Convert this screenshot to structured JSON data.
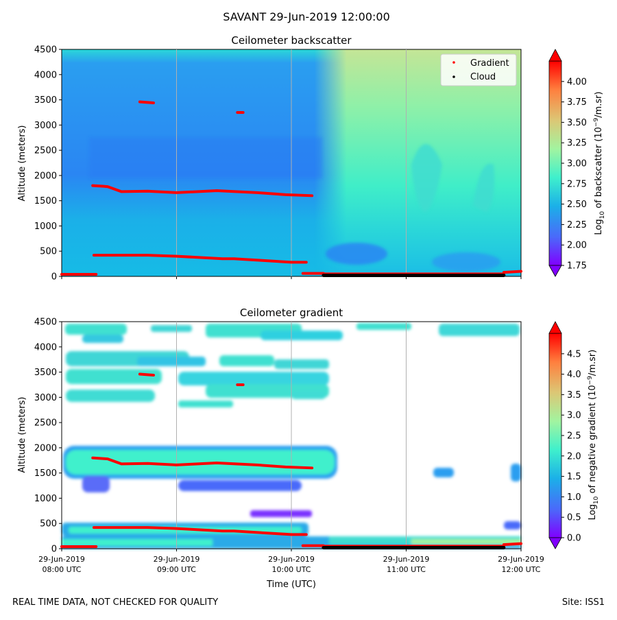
{
  "figure": {
    "title": "SAVANT 29-Jun-2019 12:00:00",
    "footer_left": "REAL TIME DATA, NOT CHECKED FOR QUALITY",
    "footer_right": "Site: ISS1",
    "xlabel": "Time (UTC)"
  },
  "colors": {
    "gradient_marker": "#ff0000",
    "cloud_marker": "#000000",
    "grid": "#b0b0b0",
    "colormap": [
      "#8000ff",
      "#4a6afa",
      "#1bb0e8",
      "#3ff0cc",
      "#a2f4a0",
      "#dcc775",
      "#ff7f3e",
      "#ff0000"
    ]
  },
  "chart_data": [
    {
      "type": "heatmap",
      "title": "Ceilometer backscatter",
      "ylabel": "Altitude (meters)",
      "ylim": [
        0,
        4500
      ],
      "yticks": [
        0,
        500,
        1000,
        1500,
        2000,
        2500,
        3000,
        3500,
        4000,
        4500
      ],
      "xlim_hours": [
        8,
        12
      ],
      "xticks_hours": [
        8,
        9,
        10,
        11,
        12
      ],
      "xtick_labels": [
        [
          "29-Jun-2019",
          "08:00 UTC"
        ],
        [
          "29-Jun-2019",
          "09:00 UTC"
        ],
        [
          "29-Jun-2019",
          "10:00 UTC"
        ],
        [
          "29-Jun-2019",
          "11:00 UTC"
        ],
        [
          "29-Jun-2019",
          "12:00 UTC"
        ]
      ],
      "show_xtick_labels": false,
      "grid": "x",
      "legend": {
        "placement": "top-right",
        "entries": [
          {
            "name": "Gradient",
            "color": "#ff0000"
          },
          {
            "name": "Cloud",
            "color": "#000000"
          }
        ]
      },
      "colorbar": {
        "label": "Log10 of backscatter (10^-9/m.sr)",
        "label_main": "Log",
        "label_sub": "10",
        "label_rest": " of backscatter (10",
        "label_sup": "−9",
        "label_end": "/m.sr)",
        "range": [
          1.75,
          4.25
        ],
        "ticks": [
          "1.75",
          "2.00",
          "2.25",
          "2.50",
          "2.75",
          "3.00",
          "3.25",
          "3.50",
          "3.75",
          "4.00"
        ],
        "tick_values": [
          1.75,
          2.0,
          2.25,
          2.5,
          2.75,
          3.0,
          3.25,
          3.5,
          3.75,
          4.0
        ]
      },
      "series": [
        {
          "name": "Gradient",
          "segments": [
            [
              [
                8.0,
                40
              ],
              [
                8.3,
                40
              ]
            ],
            [
              [
                8.28,
                420
              ],
              [
                8.75,
                420
              ],
              [
                9.0,
                400
              ],
              [
                9.4,
                350
              ],
              [
                9.5,
                350
              ],
              [
                10.0,
                280
              ],
              [
                10.13,
                280
              ]
            ],
            [
              [
                8.27,
                1800
              ],
              [
                8.4,
                1780
              ],
              [
                8.52,
                1680
              ],
              [
                8.75,
                1690
              ],
              [
                9.0,
                1660
              ],
              [
                9.35,
                1700
              ],
              [
                9.7,
                1660
              ],
              [
                9.95,
                1620
              ],
              [
                10.18,
                1600
              ]
            ],
            [
              [
                8.68,
                3460
              ],
              [
                8.8,
                3440
              ]
            ],
            [
              [
                9.53,
                3250
              ],
              [
                9.58,
                3250
              ]
            ],
            [
              [
                10.1,
                60
              ],
              [
                10.28,
                60
              ]
            ],
            [
              [
                10.28,
                50
              ],
              [
                11.85,
                50
              ]
            ],
            [
              [
                11.85,
                80
              ],
              [
                12.0,
                100
              ]
            ]
          ]
        },
        {
          "name": "Cloud",
          "segments": [
            [
              [
                10.28,
                20
              ],
              [
                11.85,
                20
              ]
            ]
          ]
        }
      ]
    },
    {
      "type": "heatmap",
      "title": "Ceilometer gradient",
      "ylabel": "Altitude (meters)",
      "ylim": [
        0,
        4500
      ],
      "yticks": [
        0,
        500,
        1000,
        1500,
        2000,
        2500,
        3000,
        3500,
        4000,
        4500
      ],
      "xlim_hours": [
        8,
        12
      ],
      "xticks_hours": [
        8,
        9,
        10,
        11,
        12
      ],
      "xtick_labels": [
        [
          "29-Jun-2019",
          "08:00 UTC"
        ],
        [
          "29-Jun-2019",
          "09:00 UTC"
        ],
        [
          "29-Jun-2019",
          "10:00 UTC"
        ],
        [
          "29-Jun-2019",
          "11:00 UTC"
        ],
        [
          "29-Jun-2019",
          "12:00 UTC"
        ]
      ],
      "show_xtick_labels": true,
      "grid": "x",
      "colorbar": {
        "label": "Log10 of negative gradient (10^-9/m.sr)",
        "label_main": "Log",
        "label_sub": "10",
        "label_rest": " of negative gradient (10",
        "label_sup": "−9",
        "label_end": "/m.sr)",
        "range": [
          0.0,
          5.0
        ],
        "ticks": [
          "0.0",
          "0.5",
          "1.0",
          "1.5",
          "2.0",
          "2.5",
          "3.0",
          "3.5",
          "4.0",
          "4.5"
        ],
        "tick_values": [
          0.0,
          0.5,
          1.0,
          1.5,
          2.0,
          2.5,
          3.0,
          3.5,
          4.0,
          4.5
        ]
      },
      "series": [
        {
          "name": "Gradient",
          "segments": [
            [
              [
                8.0,
                40
              ],
              [
                8.3,
                40
              ]
            ],
            [
              [
                8.28,
                420
              ],
              [
                8.75,
                420
              ],
              [
                9.0,
                400
              ],
              [
                9.4,
                350
              ],
              [
                9.5,
                350
              ],
              [
                10.0,
                280
              ],
              [
                10.13,
                280
              ]
            ],
            [
              [
                8.27,
                1800
              ],
              [
                8.4,
                1780
              ],
              [
                8.52,
                1680
              ],
              [
                8.75,
                1690
              ],
              [
                9.0,
                1660
              ],
              [
                9.35,
                1700
              ],
              [
                9.7,
                1660
              ],
              [
                9.95,
                1620
              ],
              [
                10.18,
                1600
              ]
            ],
            [
              [
                8.68,
                3460
              ],
              [
                8.8,
                3440
              ]
            ],
            [
              [
                9.53,
                3250
              ],
              [
                9.58,
                3250
              ]
            ],
            [
              [
                10.1,
                60
              ],
              [
                10.28,
                60
              ]
            ],
            [
              [
                10.28,
                50
              ],
              [
                11.85,
                50
              ]
            ],
            [
              [
                11.85,
                80
              ],
              [
                12.0,
                100
              ]
            ]
          ]
        },
        {
          "name": "Cloud",
          "segments": [
            [
              [
                10.28,
                20
              ],
              [
                11.85,
                20
              ]
            ]
          ]
        }
      ]
    }
  ]
}
